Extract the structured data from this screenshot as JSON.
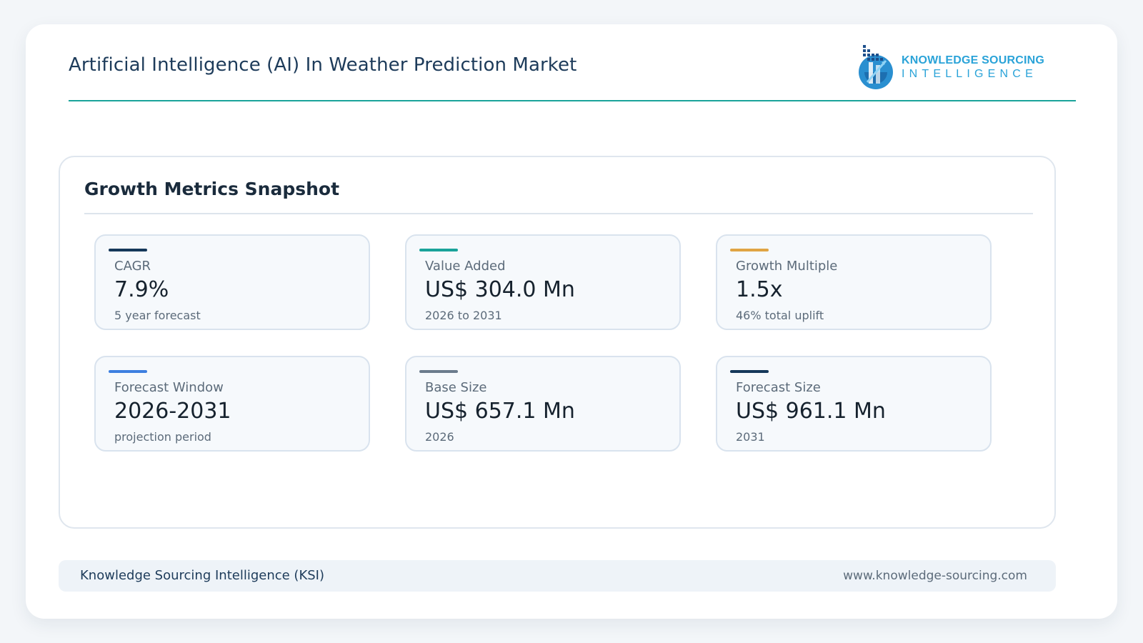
{
  "header": {
    "title": "Artificial Intelligence (AI) In Weather Prediction Market",
    "logo": {
      "line1": "KNOWLEDGE SOURCING",
      "line2": "INTELLIGENCE",
      "icon": "ksi-logo-icon"
    },
    "accent_color": "#1aa39a"
  },
  "panel": {
    "title": "Growth Metrics Snapshot",
    "cards": [
      {
        "label": "CAGR",
        "value": "7.9%",
        "sub": "5 year forecast",
        "accent": "#15385a"
      },
      {
        "label": "Value Added",
        "value": "US$ 304.0 Mn",
        "sub": "2026 to 2031",
        "accent": "#1aa39a"
      },
      {
        "label": "Growth Multiple",
        "value": "1.5x",
        "sub": "46% total uplift",
        "accent": "#e0a444"
      },
      {
        "label": "Forecast Window",
        "value": "2026-2031",
        "sub": "projection period",
        "accent": "#3d7fe0"
      },
      {
        "label": "Base Size",
        "value": "US$ 657.1 Mn",
        "sub": "2026",
        "accent": "#6b7b8c"
      },
      {
        "label": "Forecast Size",
        "value": "US$ 961.1 Mn",
        "sub": "2031",
        "accent": "#15385a"
      }
    ]
  },
  "footer": {
    "left": "Knowledge Sourcing Intelligence (KSI)",
    "right": "www.knowledge-sourcing.com"
  }
}
